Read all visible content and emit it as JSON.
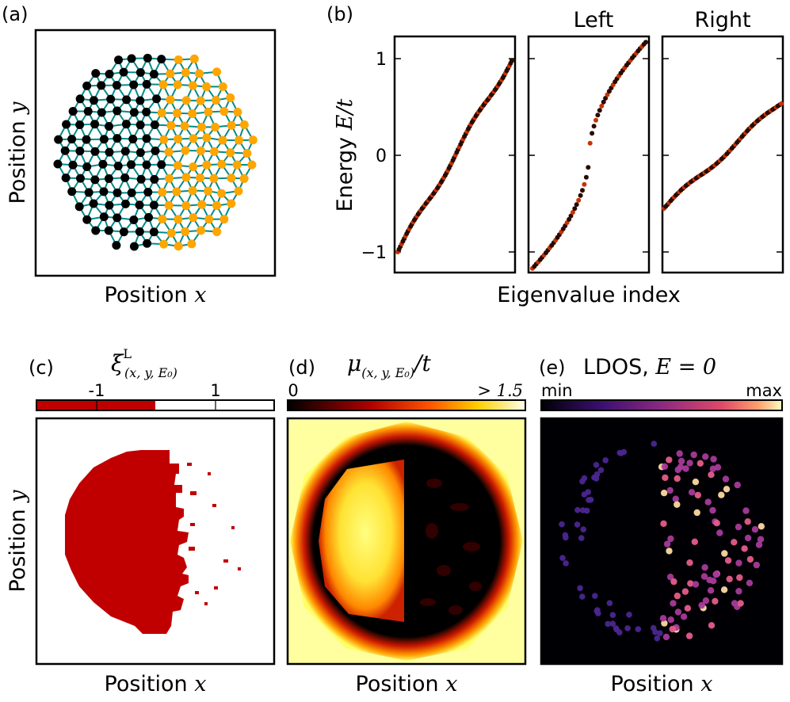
{
  "panel_a": {
    "label": "(a)",
    "xlabel_text": "Position",
    "xlabel_var": "x",
    "ylabel_text": "Position",
    "ylabel_var": "y",
    "colors": {
      "left_sites": "#000000",
      "right_sites": "#ffa500",
      "bonds": "#008b8b"
    }
  },
  "panel_b": {
    "label": "(b)",
    "subtitle_left": "Left",
    "subtitle_right": "Right",
    "ylabel_text": "Energy",
    "ylabel_var": "E/t",
    "xlabel": "Eigenvalue index",
    "yticks": [
      "1",
      "0",
      "−1"
    ]
  },
  "panel_c": {
    "label": "(c)",
    "title_sym": "ξ",
    "title_sup": "L",
    "title_sub": "(x, y, E₀)",
    "cbar_ticks": [
      "-1",
      "1"
    ],
    "xlabel_text": "Position",
    "xlabel_var": "x",
    "ylabel_text": "Position",
    "ylabel_var": "y",
    "colors": {
      "negative": "#c00000",
      "positive": "#ffffff"
    }
  },
  "panel_d": {
    "label": "(d)",
    "title_sym": "μ",
    "title_sub": "(x, y, E₀)",
    "title_tail": "/t",
    "cbar_min": "0",
    "cbar_max": "> 1.5",
    "xlabel_text": "Position",
    "xlabel_var": "x"
  },
  "panel_e": {
    "label": "(e)",
    "title": "LDOS,",
    "title_eq": "E = 0",
    "cbar_min": "min",
    "cbar_max": "max",
    "xlabel_text": "Position",
    "xlabel_var": "x"
  }
}
